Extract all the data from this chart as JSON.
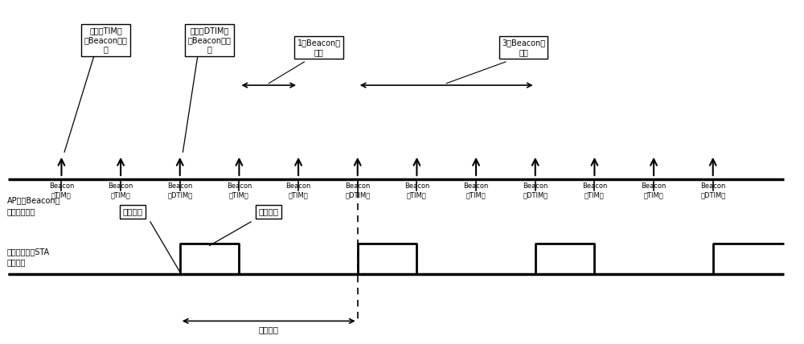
{
  "bg_color": "#ffffff",
  "line_color": "#000000",
  "beacon_x": [
    1,
    2,
    3,
    4,
    5,
    6,
    7,
    8,
    9,
    10,
    11,
    12
  ],
  "beacon_labels": [
    "Beacon\n（TIM）",
    "Beacon\n（TIM）",
    "Beacon\n（DTIM）",
    "Beacon\n（TIM）",
    "Beacon\n（TIM）",
    "Beacon\n（DTIM）",
    "Beacon\n（TIM）",
    "Beacon\n（TIM）",
    "Beacon\n（DTIM）",
    "Beacon\n（TIM）",
    "Beacon\n（TIM）",
    "Beacon\n（DTIM）"
  ],
  "ap_label": "AP进行Beacon帧\n发送的时刻点",
  "sta_label": "省电模式下的STA\n工作状态",
  "sleep_label": "休眠状态",
  "wake_label": "清醒状态",
  "sleep_duration_label": "休眠时长",
  "box1_label": "发送带TIM信\n息Beacon帧时\n刻",
  "box2_label": "发送带DTIM信\n息Beacon帧时\n刻",
  "box3_label": "1个Beacon帧\n间隔",
  "box4_label": "3个Beacon帧\n间隔",
  "timeline_y": 2.8,
  "sta_low": 0.3,
  "sta_high": 1.1,
  "xlim": [
    0,
    13.5
  ],
  "ylim": [
    -1.5,
    7.5
  ]
}
